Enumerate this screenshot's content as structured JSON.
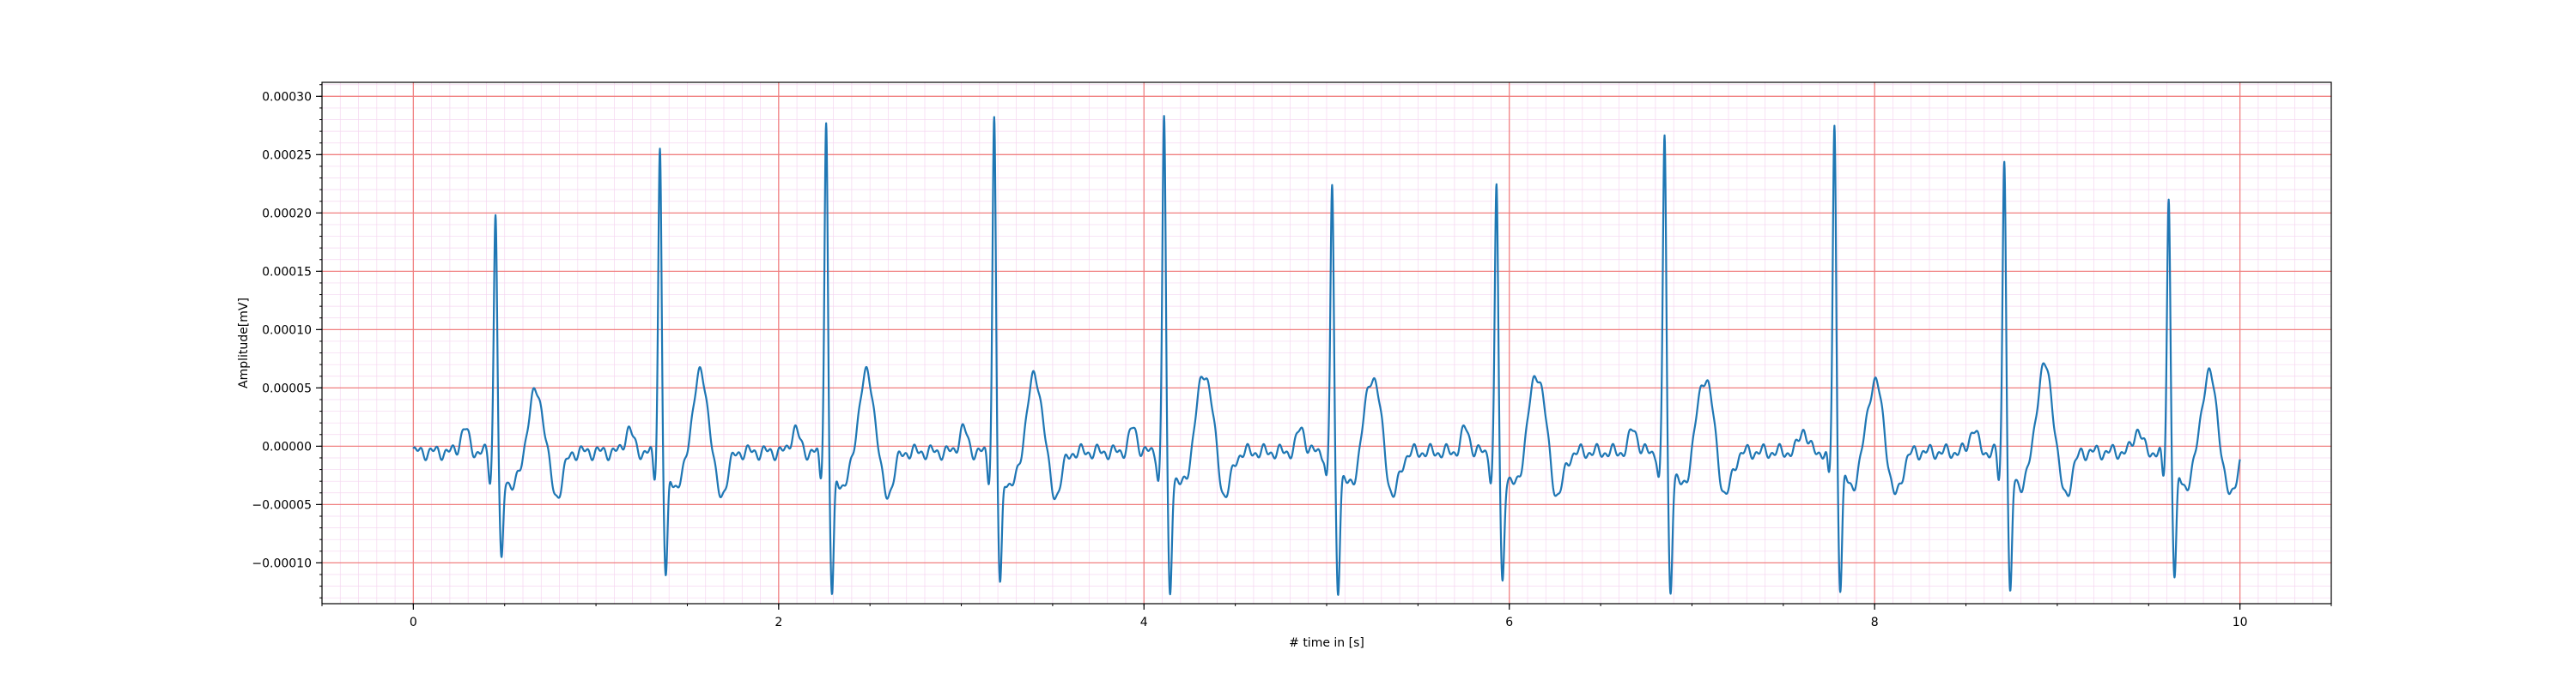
{
  "chart_data": {
    "type": "line",
    "title": "",
    "xlabel": "# time in [s]",
    "ylabel": "Amplitude[mV]",
    "xlim": [
      -0.5,
      10.5
    ],
    "ylim": [
      -0.000135,
      0.000312
    ],
    "x_ticks": [
      0,
      2,
      4,
      6,
      8,
      10
    ],
    "x_tick_labels": [
      "0",
      "2",
      "4",
      "6",
      "8",
      "10"
    ],
    "y_ticks": [
      -0.0001,
      -5e-05,
      0.0,
      5e-05,
      0.0001,
      0.00015,
      0.0002,
      0.00025,
      0.0003
    ],
    "y_tick_labels": [
      "−0.00010",
      "−0.00005",
      "0.00000",
      "0.00005",
      "0.00010",
      "0.00015",
      "0.00020",
      "0.00025",
      "0.00030"
    ],
    "grid": true,
    "line_color": "#1f77b4",
    "major_grid_color": "#f08080",
    "minor_grid_color": "#f5d6f0",
    "series": [
      {
        "beats": [
          {
            "t": 0.45,
            "r": 0.00021,
            "s": -8.5e-05,
            "t_amp": 5.3e-05
          },
          {
            "t": 1.35,
            "r": 0.000265,
            "s": -9.8e-05,
            "t_amp": 6.8e-05
          },
          {
            "t": 2.26,
            "r": 0.000287,
            "s": -0.000113,
            "t_amp": 6.8e-05
          },
          {
            "t": 3.18,
            "r": 0.00029,
            "s": -0.000105,
            "t_amp": 6.6e-05
          },
          {
            "t": 4.11,
            "r": 0.000292,
            "s": -0.000109,
            "t_amp": 7e-05
          },
          {
            "t": 5.03,
            "r": 0.000232,
            "s": -0.000105,
            "t_amp": 6.7e-05
          },
          {
            "t": 5.93,
            "r": 0.000232,
            "s": -9.9e-05,
            "t_amp": 6.9e-05
          },
          {
            "t": 6.85,
            "r": 0.000276,
            "s": -0.000106,
            "t_amp": 6.6e-05
          },
          {
            "t": 7.78,
            "r": 0.000284,
            "s": -0.000105,
            "t_amp": 6.2e-05
          },
          {
            "t": 8.71,
            "r": 0.000258,
            "s": -0.000114,
            "t_amp": 7.5e-05
          },
          {
            "t": 9.61,
            "r": 0.000222,
            "s": -9.7e-05,
            "t_amp": 6.8e-05
          }
        ],
        "x_range": [
          0,
          10
        ],
        "baseline": -5e-06
      }
    ]
  }
}
